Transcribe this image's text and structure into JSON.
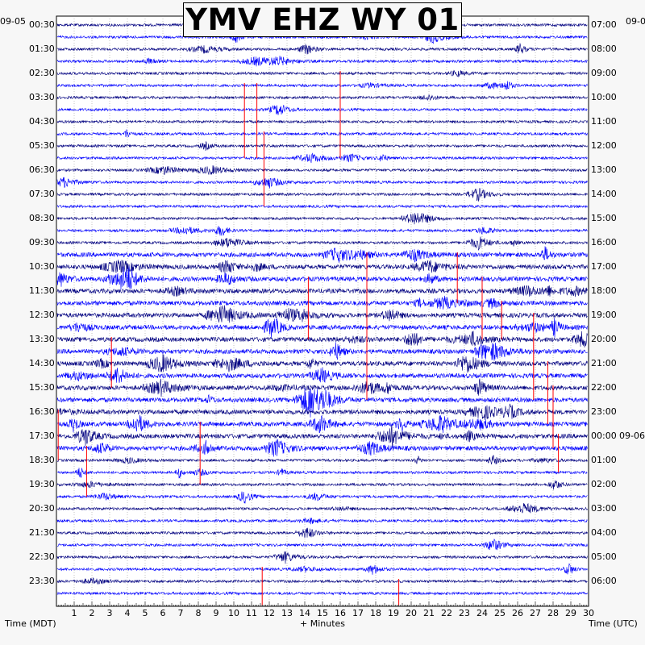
{
  "chart_data": {
    "type": "line",
    "title": "YMV EHZ WY 01",
    "xlabel": "+ Minutes",
    "left_axis_label": "Time (MDT)",
    "right_axis_label": "Time (UTC)",
    "left_date": "09-05",
    "right_date_top": "09-0",
    "right_date_change": "09-06",
    "xlim": [
      0,
      30
    ],
    "x_ticks": [
      "1",
      "2",
      "3",
      "4",
      "5",
      "6",
      "7",
      "8",
      "9",
      "10",
      "11",
      "12",
      "13",
      "14",
      "15",
      "16",
      "17",
      "18",
      "19",
      "20",
      "21",
      "22",
      "23",
      "24",
      "25",
      "26",
      "27",
      "28",
      "29",
      "30"
    ],
    "left_ticks": [
      "00:30",
      "01:30",
      "02:30",
      "03:30",
      "04:30",
      "05:30",
      "06:30",
      "07:30",
      "08:30",
      "09:30",
      "10:30",
      "11:30",
      "12:30",
      "13:30",
      "14:30",
      "15:30",
      "16:30",
      "17:30",
      "18:30",
      "19:30",
      "20:30",
      "21:30",
      "22:30",
      "23:30"
    ],
    "right_ticks": [
      "07:00",
      "08:00",
      "09:00",
      "10:00",
      "11:00",
      "12:00",
      "13:00",
      "14:00",
      "15:00",
      "16:00",
      "17:00",
      "18:00",
      "19:00",
      "20:00",
      "21:00",
      "22:00",
      "23:00",
      "00:00",
      "01:00",
      "02:00",
      "03:00",
      "04:00",
      "05:00",
      "06:00"
    ],
    "trace_count": 48,
    "trace_colors": [
      "#000080",
      "#0000ff"
    ],
    "event_color": "#ff0000",
    "grid": true
  }
}
